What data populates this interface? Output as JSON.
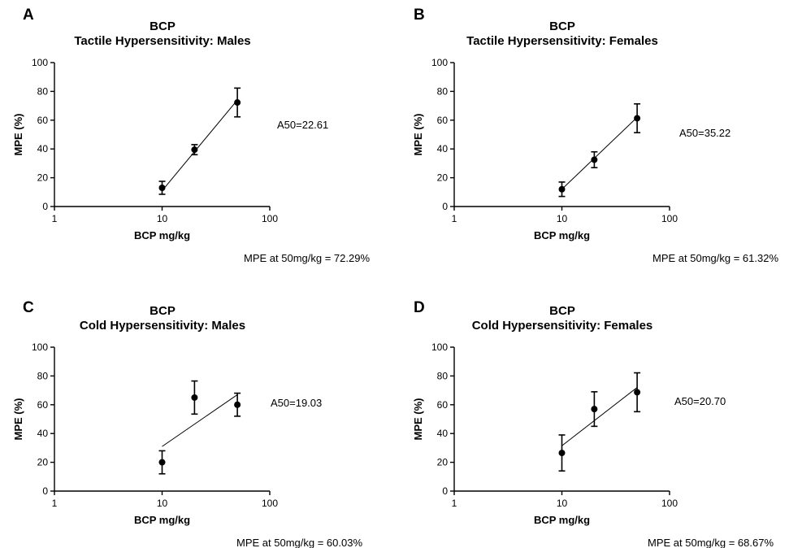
{
  "chart_data": [
    {
      "panel": "A",
      "type": "scatter",
      "title": [
        "BCP",
        "Tactile Hypersensitivity: Males"
      ],
      "xlabel": "BCP mg/kg",
      "ylabel": "MPE (%)",
      "xscale": "log",
      "xlim": [
        1,
        100
      ],
      "ylim": [
        0,
        100
      ],
      "xticks": [
        1,
        10,
        100
      ],
      "yticks": [
        0,
        20,
        40,
        60,
        80,
        100
      ],
      "points": [
        {
          "x": 10,
          "y": 13,
          "err": 4.5
        },
        {
          "x": 20,
          "y": 39.5,
          "err": 3.5
        },
        {
          "x": 50,
          "y": 72.29,
          "err": 10
        }
      ],
      "fit_line": {
        "x": [
          10,
          50
        ],
        "y": [
          11,
          74
        ]
      },
      "annotations": [
        "A50=22.61",
        "MPE at 50mg/kg = 72.29%"
      ]
    },
    {
      "panel": "B",
      "type": "scatter",
      "title": [
        "BCP",
        "Tactile Hypersensitivity: Females"
      ],
      "xlabel": "BCP mg/kg",
      "ylabel": "MPE (%)",
      "xscale": "log",
      "xlim": [
        1,
        100
      ],
      "ylim": [
        0,
        100
      ],
      "xticks": [
        1,
        10,
        100
      ],
      "yticks": [
        0,
        20,
        40,
        60,
        80,
        100
      ],
      "points": [
        {
          "x": 10,
          "y": 12,
          "err": 5
        },
        {
          "x": 20,
          "y": 32.5,
          "err": 5.5
        },
        {
          "x": 50,
          "y": 61.32,
          "err": 10
        }
      ],
      "fit_line": {
        "x": [
          10,
          50
        ],
        "y": [
          12,
          62
        ]
      },
      "annotations": [
        "A50=35.22",
        "MPE at 50mg/kg = 61.32%"
      ]
    },
    {
      "panel": "C",
      "type": "scatter",
      "title": [
        "BCP",
        "Cold Hypersensitivity: Males"
      ],
      "xlabel": "BCP mg/kg",
      "ylabel": "MPE (%)",
      "xscale": "log",
      "xlim": [
        1,
        100
      ],
      "ylim": [
        0,
        100
      ],
      "xticks": [
        1,
        10,
        100
      ],
      "yticks": [
        0,
        20,
        40,
        60,
        80,
        100
      ],
      "points": [
        {
          "x": 10,
          "y": 20,
          "err": 8
        },
        {
          "x": 20,
          "y": 65,
          "err": 11.5
        },
        {
          "x": 50,
          "y": 60.03,
          "err": 8
        }
      ],
      "fit_line": {
        "x": [
          10,
          50
        ],
        "y": [
          31,
          67
        ]
      },
      "annotations": [
        "A50=19.03",
        "MPE at 50mg/kg = 60.03%"
      ]
    },
    {
      "panel": "D",
      "type": "scatter",
      "title": [
        "BCP",
        "Cold Hypersensitivity: Females"
      ],
      "xlabel": "BCP mg/kg",
      "ylabel": "MPE (%)",
      "xscale": "log",
      "xlim": [
        1,
        100
      ],
      "ylim": [
        0,
        100
      ],
      "xticks": [
        1,
        10,
        100
      ],
      "yticks": [
        0,
        20,
        40,
        60,
        80,
        100
      ],
      "points": [
        {
          "x": 10,
          "y": 26.5,
          "err": 12.5
        },
        {
          "x": 20,
          "y": 57,
          "err": 12
        },
        {
          "x": 50,
          "y": 68.67,
          "err": 13.5
        }
      ],
      "fit_line": {
        "x": [
          10,
          50
        ],
        "y": [
          31.5,
          72
        ]
      },
      "annotations": [
        "A50=20.70",
        "MPE at 50mg/kg = 68.67%"
      ]
    }
  ]
}
